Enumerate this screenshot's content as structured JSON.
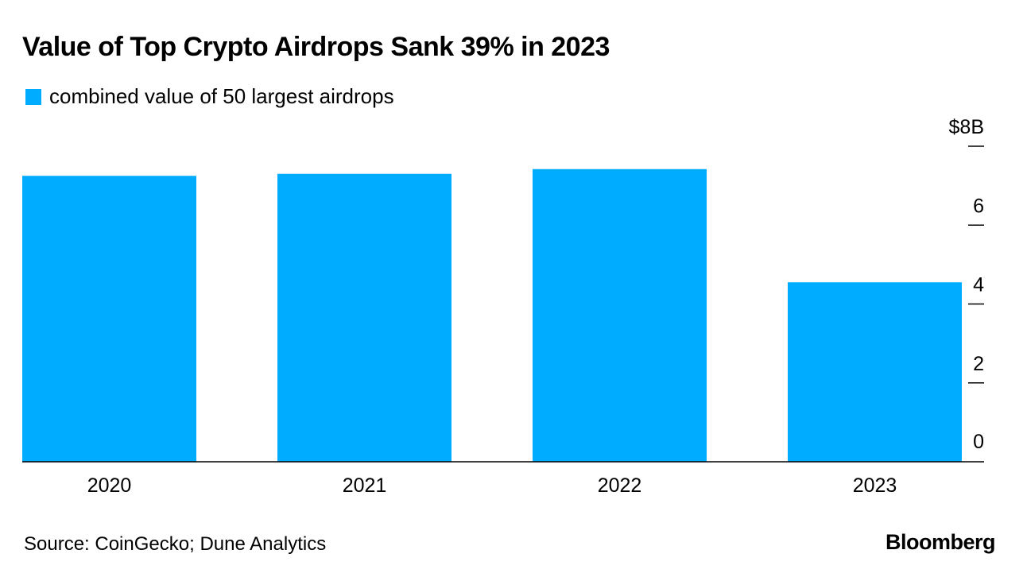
{
  "colors": {
    "bar": "#00acff",
    "axis": "#000000",
    "text": "#000000",
    "background": "#ffffff"
  },
  "footer": {
    "source": "Source: CoinGecko; Dune Analytics",
    "brand": "Bloomberg"
  },
  "chart_data": {
    "type": "bar",
    "title": "Value of Top Crypto Airdrops Sank 39% in 2023",
    "xlabel": "",
    "ylabel": "",
    "categories": [
      "2020",
      "2021",
      "2022",
      "2023"
    ],
    "series": [
      {
        "name": "combined value of 50 largest airdrops",
        "values": [
          7.25,
          7.3,
          7.42,
          4.55
        ]
      }
    ],
    "ylim": [
      0,
      8
    ],
    "yticks": [
      0,
      2,
      4,
      6,
      8
    ],
    "ytick_labels": [
      "0",
      "2",
      "4",
      "6",
      "$8B"
    ],
    "y_axis_position": "right",
    "grid": false,
    "legend_position": "top-left"
  }
}
